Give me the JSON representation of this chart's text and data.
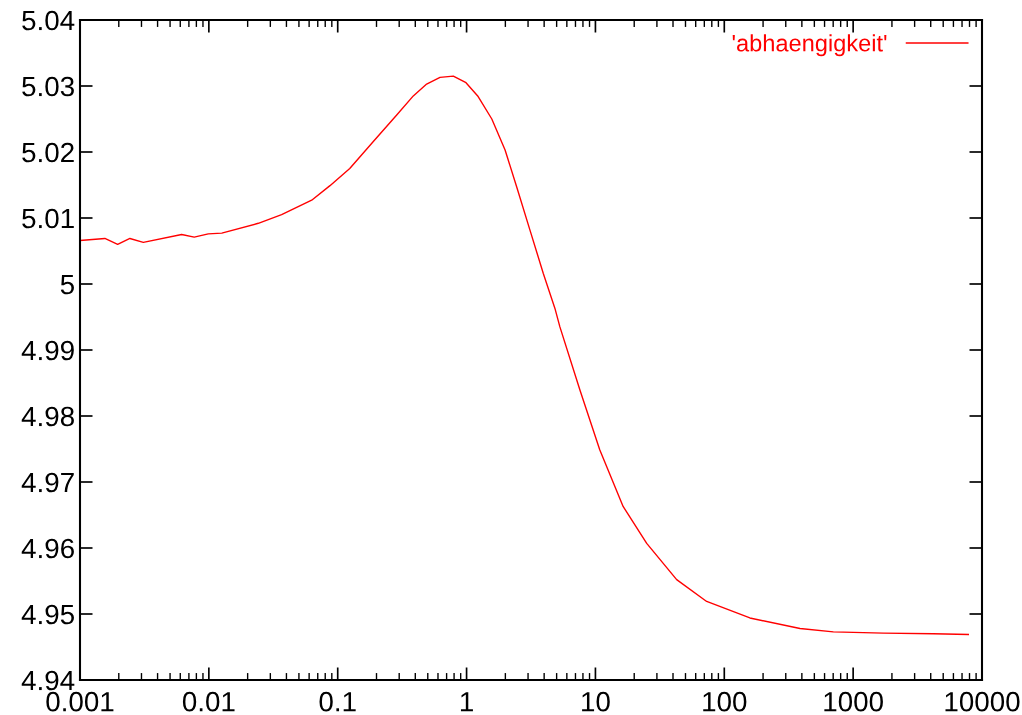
{
  "chart_data": {
    "type": "line",
    "log": "x",
    "grid": false,
    "legend": "top right",
    "line_style": "solid",
    "marker": "none",
    "xlim": [
      0.001,
      10000
    ],
    "xticks": [
      0.001,
      0.01,
      0.1,
      1,
      10,
      100,
      1000,
      10000
    ],
    "ylim": [
      4.94,
      5.04
    ],
    "yticks": [
      4.94,
      4.95,
      4.96,
      4.97,
      4.98,
      4.99,
      5,
      5.01,
      5.02,
      5.03,
      5.04
    ],
    "series": [
      {
        "name": "'abhaengigkeit'",
        "color": "#ff0000",
        "x": [
          0.001,
          0.00156,
          0.00196,
          0.00244,
          0.0031,
          0.00615,
          0.0077,
          0.0099,
          0.0126,
          0.0242,
          0.0367,
          0.0628,
          0.0871,
          0.124,
          0.189,
          0.287,
          0.386,
          0.49,
          0.622,
          0.789,
          0.99,
          1.23,
          1.57,
          1.99,
          2.45,
          3.1,
          3.94,
          4.85,
          5.3,
          7.59,
          10.8,
          16.4,
          25,
          42.7,
          73,
          158,
          387,
          702,
          1714,
          4190,
          7830
        ],
        "values": [
          5.0066,
          5.0069,
          5.006,
          5.0069,
          5.0063,
          5.0075,
          5.0071,
          5.0076,
          5.0077,
          5.0092,
          5.0105,
          5.0127,
          5.0149,
          5.0175,
          5.0216,
          5.0256,
          5.0285,
          5.0303,
          5.0313,
          5.0315,
          5.0305,
          5.0284,
          5.025,
          5.0203,
          5.0147,
          5.0082,
          5.0016,
          4.9963,
          4.9935,
          4.9839,
          4.9749,
          4.9663,
          4.9607,
          4.9552,
          4.9519,
          4.9494,
          4.9478,
          4.9473,
          4.9471,
          4.947,
          4.9469
        ]
      }
    ]
  }
}
